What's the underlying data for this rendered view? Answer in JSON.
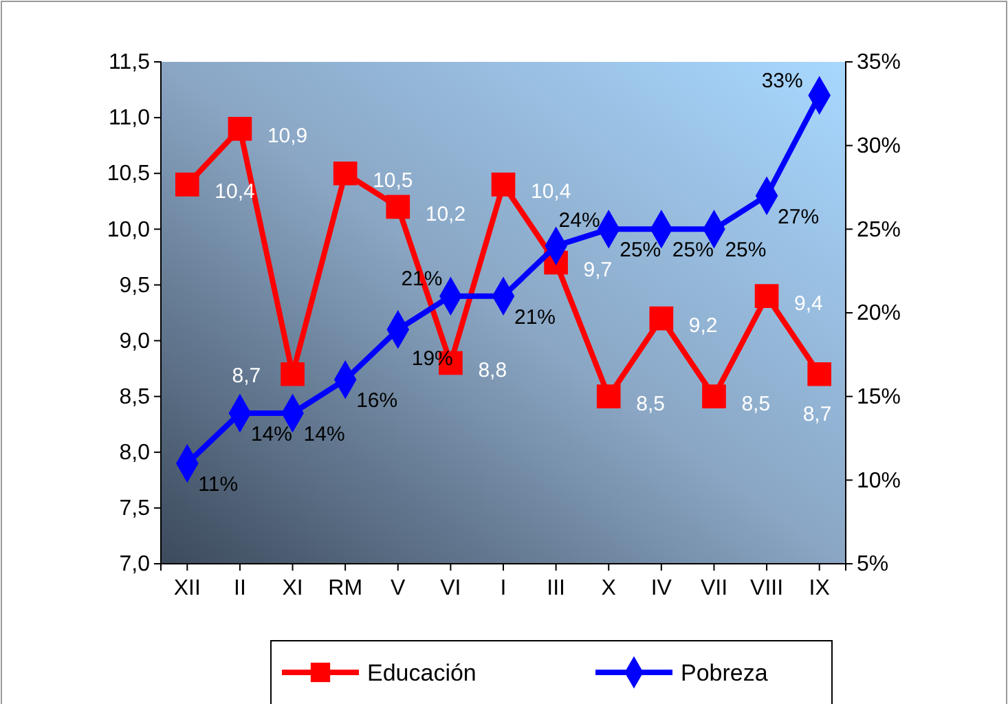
{
  "chart_data": {
    "type": "line",
    "categories": [
      "XII",
      "II",
      "XI",
      "RM",
      "V",
      "VI",
      "I",
      "III",
      "X",
      "IV",
      "VII",
      "VIII",
      "IX"
    ],
    "ylim": [
      7,
      11.5
    ],
    "yticks": [
      {
        "value": 7,
        "label": "7,0"
      },
      {
        "value": 7.5,
        "label": "7,5"
      },
      {
        "value": 8,
        "label": "8,0"
      },
      {
        "value": 8.5,
        "label": "8,5"
      },
      {
        "value": 9,
        "label": "9,0"
      },
      {
        "value": 9.5,
        "label": "9,5"
      },
      {
        "value": 10,
        "label": "10,0"
      },
      {
        "value": 10.5,
        "label": "10,5"
      },
      {
        "value": 11,
        "label": "11,0"
      },
      {
        "value": 11.5,
        "label": "11,5"
      }
    ],
    "y2lim": [
      5,
      35
    ],
    "y2ticks": [
      {
        "value": 5,
        "label": "5%"
      },
      {
        "value": 10,
        "label": "10%"
      },
      {
        "value": 15,
        "label": "15%"
      },
      {
        "value": 20,
        "label": "20%"
      },
      {
        "value": 25,
        "label": "25%"
      },
      {
        "value": 30,
        "label": "30%"
      },
      {
        "value": 35,
        "label": "35%"
      }
    ],
    "grid": false,
    "legend": "bottom",
    "series": [
      {
        "name": "Educación",
        "color": "#ff0000",
        "marker": "square",
        "values": [
          10.4,
          10.9,
          8.7,
          10.5,
          10.2,
          8.8,
          10.4,
          9.7,
          8.5,
          9.2,
          8.5,
          9.4,
          8.7
        ],
        "value_labels": [
          "10,4",
          "10,9",
          "8,7",
          "10,5",
          "10,2",
          "8,8",
          "10,4",
          "9,7",
          "8,5",
          "9,2",
          "8,5",
          "9,4",
          "8,7"
        ]
      },
      {
        "name": "Pobreza",
        "color": "#0000ff",
        "marker": "diamond",
        "axis": "y2",
        "values": [
          11,
          14,
          14,
          16,
          19,
          21,
          21,
          24,
          25,
          25,
          25,
          27,
          33
        ],
        "value_labels": [
          "11%",
          "14%",
          "14%",
          "16%",
          "19%",
          "21%",
          "21%",
          "24%",
          "25%",
          "25%",
          "25%",
          "27%",
          "33%"
        ]
      }
    ]
  }
}
